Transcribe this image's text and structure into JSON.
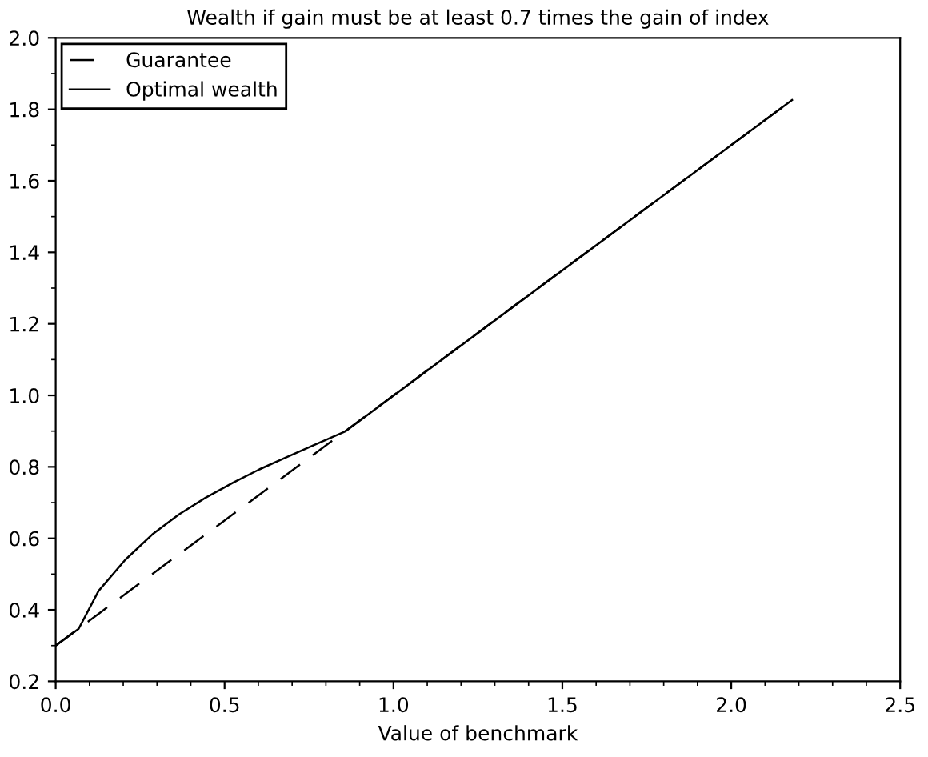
{
  "chart_data": {
    "type": "line",
    "title": "Wealth if gain must be at least 0.7 times the gain of index",
    "xlabel": "Value of benchmark",
    "xlim": [
      0,
      2.5
    ],
    "ylim": [
      0.2,
      2.0
    ],
    "xticks": [
      {
        "value": 0,
        "label": "0.0"
      },
      0.5,
      {
        "value": 1,
        "label": "1.0"
      },
      1.5,
      {
        "value": 2,
        "label": "2.0"
      },
      2.5
    ],
    "yticks": [
      0.2,
      0.4,
      0.6,
      0.8,
      {
        "value": 1,
        "label": "1.0"
      },
      1.2,
      1.4,
      1.6,
      1.8,
      {
        "value": 2,
        "label": "2.0"
      }
    ],
    "grid": false,
    "legend": "top left",
    "series": [
      {
        "name": "Guarantee",
        "color": "#000000",
        "line_style": "dashed",
        "x": [
          0,
          2.18
        ],
        "values": [
          0.3,
          1.826
        ]
      },
      {
        "name": "Optimal wealth",
        "color": "#000000",
        "line_style": "solid",
        "x": [
          0,
          0.068,
          0.127,
          0.206,
          0.286,
          0.365,
          0.444,
          0.524,
          0.603,
          0.683,
          0.762,
          0.857,
          2.18
        ],
        "values": [
          0.3,
          0.347,
          0.453,
          0.54,
          0.611,
          0.667,
          0.714,
          0.755,
          0.793,
          0.827,
          0.86,
          0.899,
          1.826
        ]
      }
    ]
  }
}
